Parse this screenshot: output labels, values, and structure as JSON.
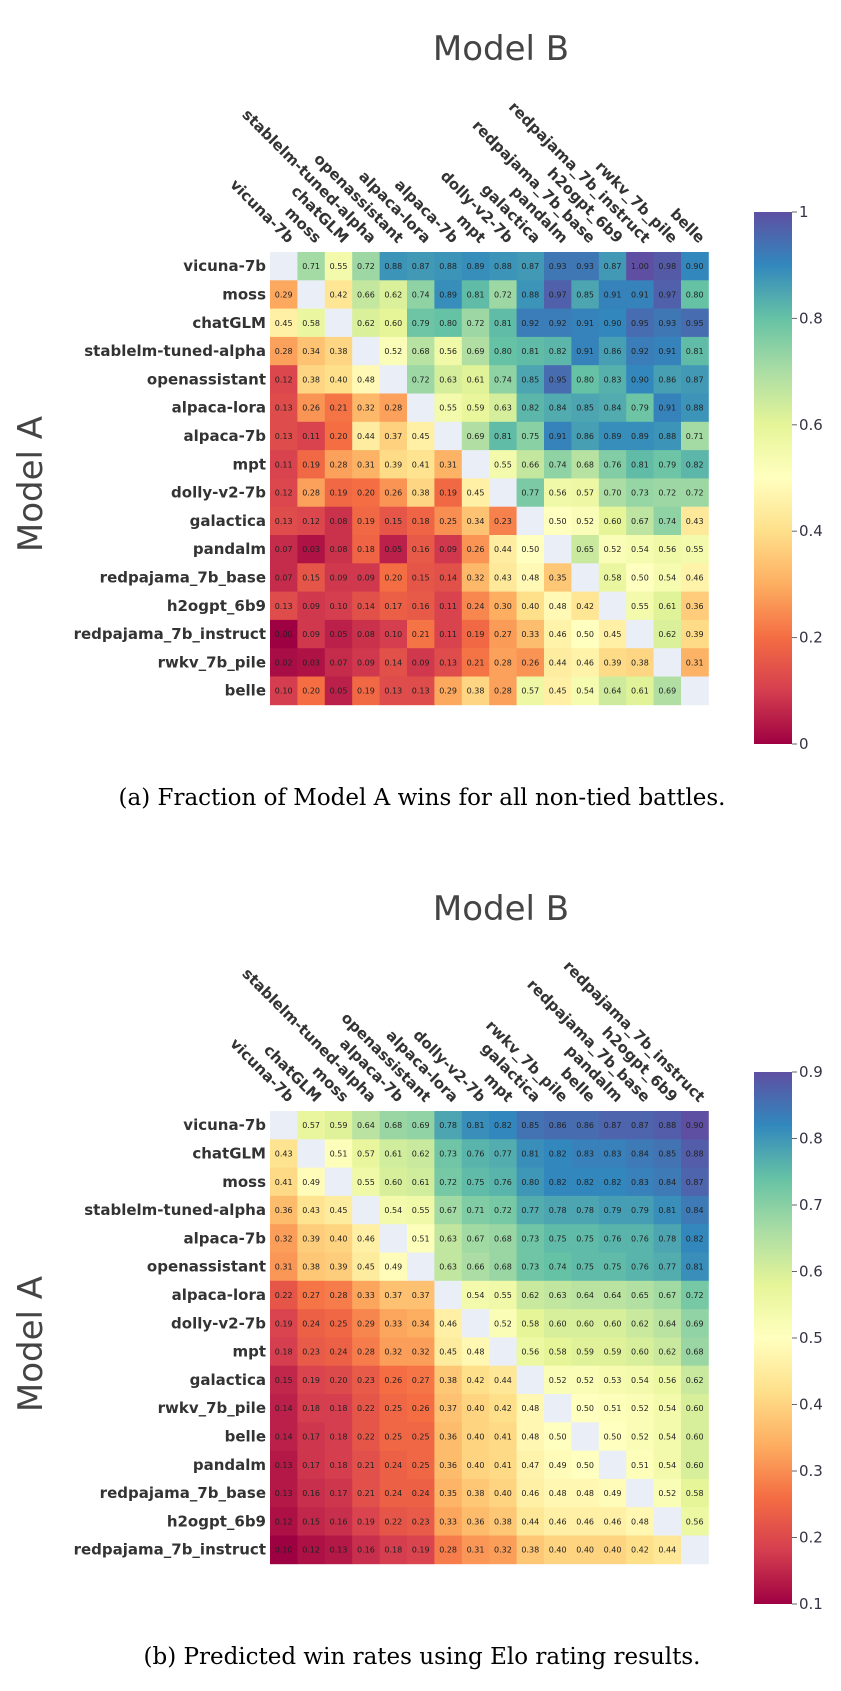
{
  "colors": {
    "scale": [
      "#9e0142",
      "#d53e4f",
      "#f46d43",
      "#fdae61",
      "#fee08b",
      "#ffffbf",
      "#e6f598",
      "#abdda4",
      "#66c2a5",
      "#3288bd",
      "#5e4fa2"
    ],
    "diagonal": "#e9eef7"
  },
  "chart_data": [
    {
      "type": "heatmap",
      "title": "Model B",
      "ylabel": "Model A",
      "caption": "(a) Fraction of Model A wins for all non-tied battles.",
      "rows": [
        "vicuna-7b",
        "moss",
        "chatGLM",
        "stablelm-tuned-alpha",
        "openassistant",
        "alpaca-lora",
        "alpaca-7b",
        "mpt",
        "dolly-v2-7b",
        "galactica",
        "pandalm",
        "redpajama_7b_base",
        "h2ogpt_6b9",
        "redpajama_7b_instruct",
        "rwkv_7b_pile",
        "belle"
      ],
      "columns": [
        "vicuna-7b",
        "moss",
        "chatGLM",
        "stablelm-tuned-alpha",
        "openassistant",
        "alpaca-lora",
        "alpaca-7b",
        "mpt",
        "dolly-v2-7b",
        "galactica",
        "pandalm",
        "redpajama_7b_base",
        "h2ogpt_6b9",
        "redpajama_7b_instruct",
        "rwkv_7b_pile",
        "belle"
      ],
      "values": [
        [
          null,
          0.71,
          0.55,
          0.72,
          0.88,
          0.87,
          0.88,
          0.89,
          0.88,
          0.87,
          0.93,
          0.93,
          0.87,
          1.0,
          0.98,
          0.9
        ],
        [
          0.29,
          null,
          0.42,
          0.66,
          0.62,
          0.74,
          0.89,
          0.81,
          0.72,
          0.88,
          0.97,
          0.85,
          0.91,
          0.91,
          0.97,
          0.8
        ],
        [
          0.45,
          0.58,
          null,
          0.62,
          0.6,
          0.79,
          0.8,
          0.72,
          0.81,
          0.92,
          0.92,
          0.91,
          0.9,
          0.95,
          0.93,
          0.95
        ],
        [
          0.28,
          0.34,
          0.38,
          null,
          0.52,
          0.68,
          0.56,
          0.69,
          0.8,
          0.81,
          0.82,
          0.91,
          0.86,
          0.92,
          0.91,
          0.81
        ],
        [
          0.12,
          0.38,
          0.4,
          0.48,
          null,
          0.72,
          0.63,
          0.61,
          0.74,
          0.85,
          0.95,
          0.8,
          0.83,
          0.9,
          0.86,
          0.87
        ],
        [
          0.13,
          0.26,
          0.21,
          0.32,
          0.28,
          null,
          0.55,
          0.59,
          0.63,
          0.82,
          0.84,
          0.85,
          0.84,
          0.79,
          0.91,
          0.88
        ],
        [
          0.13,
          0.11,
          0.2,
          0.44,
          0.37,
          0.45,
          null,
          0.69,
          0.81,
          0.75,
          0.91,
          0.86,
          0.89,
          0.89,
          0.88,
          0.71
        ],
        [
          0.11,
          0.19,
          0.28,
          0.31,
          0.39,
          0.41,
          0.31,
          null,
          0.55,
          0.66,
          0.74,
          0.68,
          0.76,
          0.81,
          0.79,
          0.82
        ],
        [
          0.12,
          0.28,
          0.19,
          0.2,
          0.26,
          0.38,
          0.19,
          0.45,
          null,
          0.77,
          0.56,
          0.57,
          0.7,
          0.73,
          0.72,
          0.72
        ],
        [
          0.13,
          0.12,
          0.08,
          0.19,
          0.15,
          0.18,
          0.25,
          0.34,
          0.23,
          null,
          0.5,
          0.52,
          0.6,
          0.67,
          0.74,
          0.43
        ],
        [
          0.07,
          0.03,
          0.08,
          0.18,
          0.05,
          0.16,
          0.09,
          0.26,
          0.44,
          0.5,
          null,
          0.65,
          0.52,
          0.54,
          0.56,
          0.55
        ],
        [
          0.07,
          0.15,
          0.09,
          0.09,
          0.2,
          0.15,
          0.14,
          0.32,
          0.43,
          0.48,
          0.35,
          null,
          0.58,
          0.5,
          0.54,
          0.46
        ],
        [
          0.13,
          0.09,
          0.1,
          0.14,
          0.17,
          0.16,
          0.11,
          0.24,
          0.3,
          0.4,
          0.48,
          0.42,
          null,
          0.55,
          0.61,
          0.36
        ],
        [
          0.0,
          0.09,
          0.05,
          0.08,
          0.1,
          0.21,
          0.11,
          0.19,
          0.27,
          0.33,
          0.46,
          0.5,
          0.45,
          null,
          0.62,
          0.39
        ],
        [
          0.02,
          0.03,
          0.07,
          0.09,
          0.14,
          0.09,
          0.13,
          0.21,
          0.28,
          0.26,
          0.44,
          0.46,
          0.39,
          0.38,
          null,
          0.31
        ],
        [
          0.1,
          0.2,
          0.05,
          0.19,
          0.13,
          0.13,
          0.29,
          0.38,
          0.28,
          0.57,
          0.45,
          0.54,
          0.64,
          0.61,
          0.69,
          null
        ]
      ],
      "colorbar": {
        "min": 0,
        "max": 1,
        "ticks": [
          "0",
          "0.2",
          "0.4",
          "0.6",
          "0.8",
          "1"
        ],
        "tick_values": [
          0,
          0.2,
          0.4,
          0.6,
          0.8,
          1
        ]
      }
    },
    {
      "type": "heatmap",
      "title": "Model B",
      "ylabel": "Model A",
      "caption": "(b) Predicted win rates using Elo rating results.",
      "rows": [
        "vicuna-7b",
        "chatGLM",
        "moss",
        "stablelm-tuned-alpha",
        "alpaca-7b",
        "openassistant",
        "alpaca-lora",
        "dolly-v2-7b",
        "mpt",
        "galactica",
        "rwkv_7b_pile",
        "belle",
        "pandalm",
        "redpajama_7b_base",
        "h2ogpt_6b9",
        "redpajama_7b_instruct"
      ],
      "columns": [
        "vicuna-7b",
        "chatGLM",
        "moss",
        "stablelm-tuned-alpha",
        "alpaca-7b",
        "openassistant",
        "alpaca-lora",
        "dolly-v2-7b",
        "mpt",
        "galactica",
        "rwkv_7b_pile",
        "belle",
        "pandalm",
        "redpajama_7b_base",
        "h2ogpt_6b9",
        "redpajama_7b_instruct"
      ],
      "values": [
        [
          null,
          0.57,
          0.59,
          0.64,
          0.68,
          0.69,
          0.78,
          0.81,
          0.82,
          0.85,
          0.86,
          0.86,
          0.87,
          0.87,
          0.88,
          0.9
        ],
        [
          0.43,
          null,
          0.51,
          0.57,
          0.61,
          0.62,
          0.73,
          0.76,
          0.77,
          0.81,
          0.82,
          0.83,
          0.83,
          0.84,
          0.85,
          0.88
        ],
        [
          0.41,
          0.49,
          null,
          0.55,
          0.6,
          0.61,
          0.72,
          0.75,
          0.76,
          0.8,
          0.82,
          0.82,
          0.82,
          0.83,
          0.84,
          0.87
        ],
        [
          0.36,
          0.43,
          0.45,
          null,
          0.54,
          0.55,
          0.67,
          0.71,
          0.72,
          0.77,
          0.78,
          0.78,
          0.79,
          0.79,
          0.81,
          0.84
        ],
        [
          0.32,
          0.39,
          0.4,
          0.46,
          null,
          0.51,
          0.63,
          0.67,
          0.68,
          0.73,
          0.75,
          0.75,
          0.76,
          0.76,
          0.78,
          0.82
        ],
        [
          0.31,
          0.38,
          0.39,
          0.45,
          0.49,
          null,
          0.63,
          0.66,
          0.68,
          0.73,
          0.74,
          0.75,
          0.75,
          0.76,
          0.77,
          0.81
        ],
        [
          0.22,
          0.27,
          0.28,
          0.33,
          0.37,
          0.37,
          null,
          0.54,
          0.55,
          0.62,
          0.63,
          0.64,
          0.64,
          0.65,
          0.67,
          0.72
        ],
        [
          0.19,
          0.24,
          0.25,
          0.29,
          0.33,
          0.34,
          0.46,
          null,
          0.52,
          0.58,
          0.6,
          0.6,
          0.6,
          0.62,
          0.64,
          0.69
        ],
        [
          0.18,
          0.23,
          0.24,
          0.28,
          0.32,
          0.32,
          0.45,
          0.48,
          null,
          0.56,
          0.58,
          0.59,
          0.59,
          0.6,
          0.62,
          0.68
        ],
        [
          0.15,
          0.19,
          0.2,
          0.23,
          0.26,
          0.27,
          0.38,
          0.42,
          0.44,
          null,
          0.52,
          0.52,
          0.53,
          0.54,
          0.56,
          0.62
        ],
        [
          0.14,
          0.18,
          0.18,
          0.22,
          0.25,
          0.26,
          0.37,
          0.4,
          0.42,
          0.48,
          null,
          0.5,
          0.51,
          0.52,
          0.54,
          0.6
        ],
        [
          0.14,
          0.17,
          0.18,
          0.22,
          0.25,
          0.25,
          0.36,
          0.4,
          0.41,
          0.48,
          0.5,
          null,
          0.5,
          0.52,
          0.54,
          0.6
        ],
        [
          0.13,
          0.17,
          0.18,
          0.21,
          0.24,
          0.25,
          0.36,
          0.4,
          0.41,
          0.47,
          0.49,
          0.5,
          null,
          0.51,
          0.54,
          0.6
        ],
        [
          0.13,
          0.16,
          0.17,
          0.21,
          0.24,
          0.24,
          0.35,
          0.38,
          0.4,
          0.46,
          0.48,
          0.48,
          0.49,
          null,
          0.52,
          0.58
        ],
        [
          0.12,
          0.15,
          0.16,
          0.19,
          0.22,
          0.23,
          0.33,
          0.36,
          0.38,
          0.44,
          0.46,
          0.46,
          0.46,
          0.48,
          null,
          0.56
        ],
        [
          0.1,
          0.12,
          0.13,
          0.16,
          0.18,
          0.19,
          0.28,
          0.31,
          0.32,
          0.38,
          0.4,
          0.4,
          0.4,
          0.42,
          0.44,
          null
        ]
      ],
      "colorbar": {
        "min": 0.1,
        "max": 0.9,
        "ticks": [
          "0.1",
          "0.2",
          "0.3",
          "0.4",
          "0.5",
          "0.6",
          "0.7",
          "0.8",
          "0.9"
        ],
        "tick_values": [
          0.1,
          0.2,
          0.3,
          0.4,
          0.5,
          0.6,
          0.7,
          0.8,
          0.9
        ]
      }
    }
  ]
}
